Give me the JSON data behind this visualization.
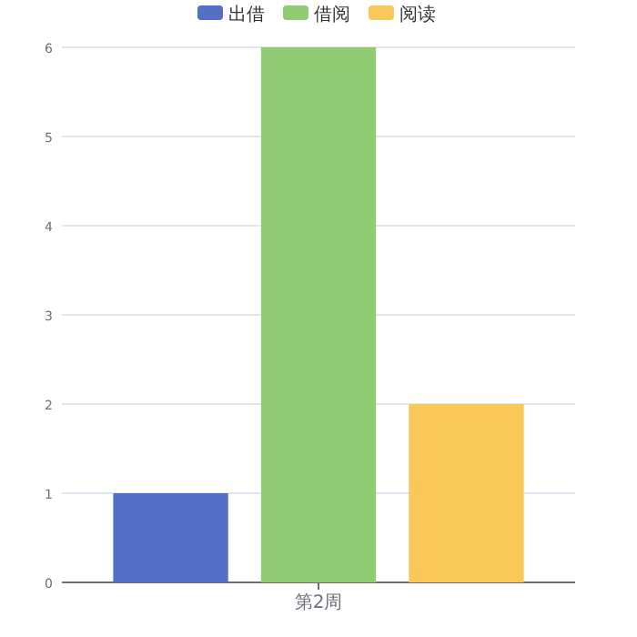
{
  "chart_data": {
    "type": "bar",
    "categories": [
      "第2周"
    ],
    "series": [
      {
        "name": "出借",
        "color": "#5470c6",
        "values": [
          1
        ]
      },
      {
        "name": "借阅",
        "color": "#91cc75",
        "values": [
          6
        ]
      },
      {
        "name": "阅读",
        "color": "#fac858",
        "values": [
          2
        ]
      }
    ],
    "ylim": [
      0,
      6
    ],
    "yticks": [
      0,
      1,
      2,
      3,
      4,
      5,
      6
    ],
    "grid": "y",
    "legend": "top"
  }
}
